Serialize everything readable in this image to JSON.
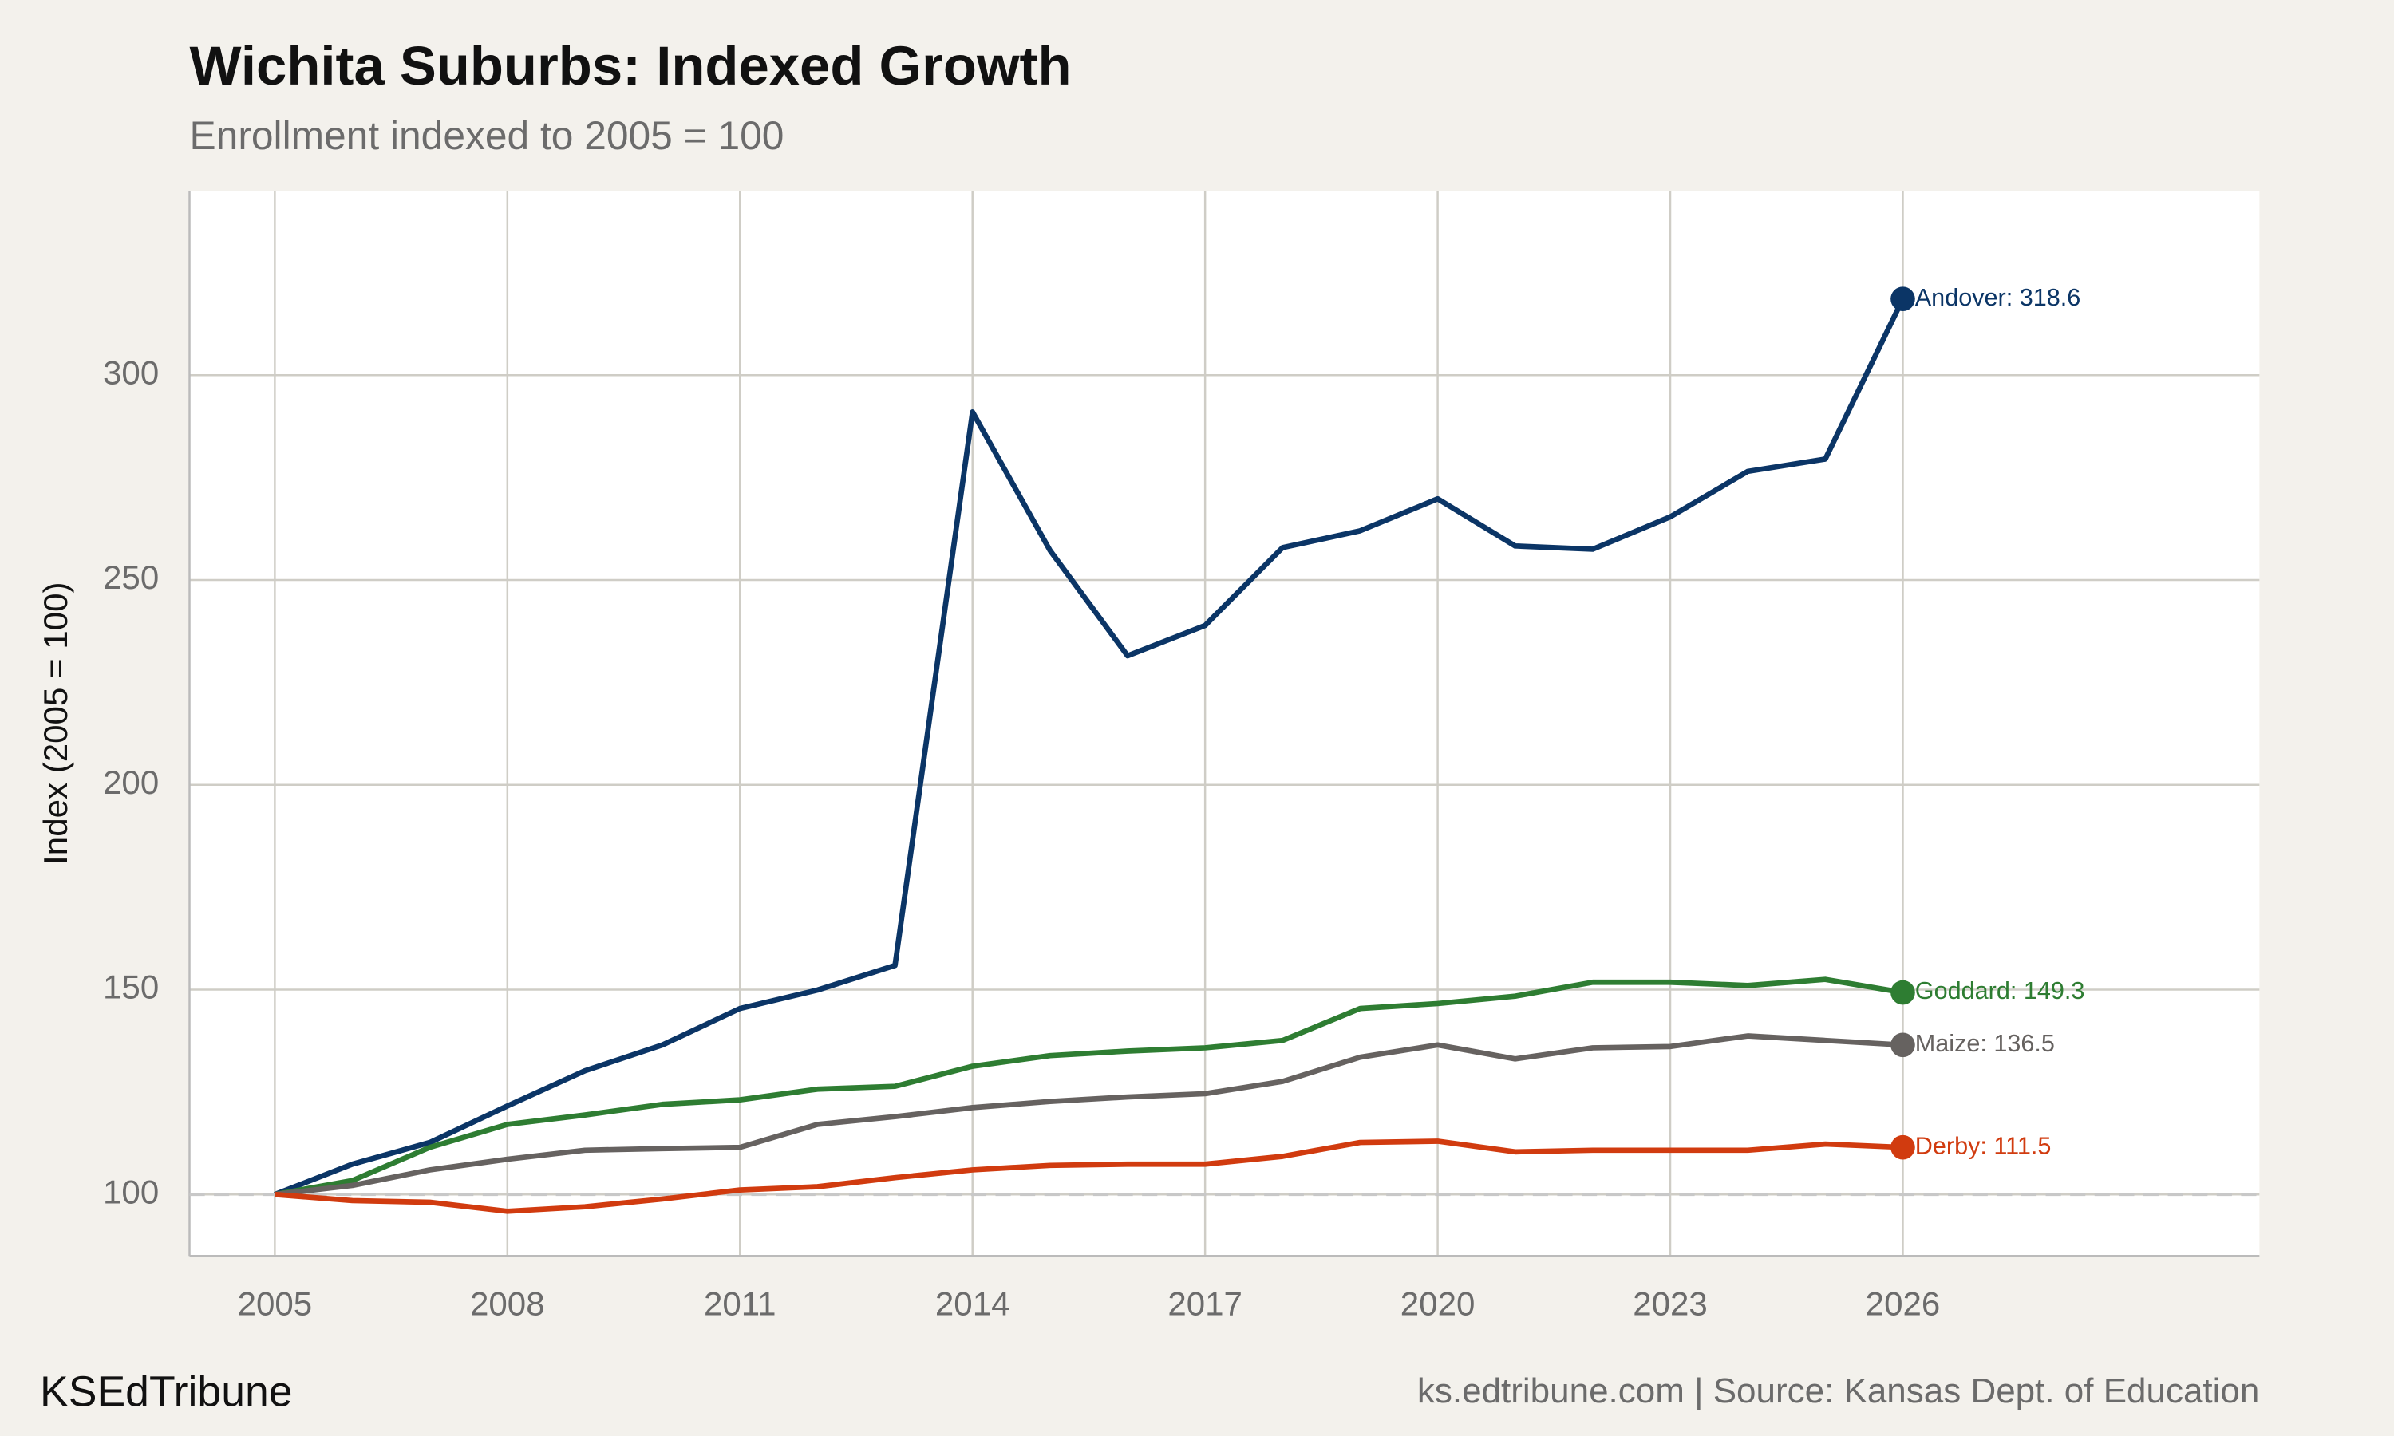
{
  "chart_data": {
    "type": "line",
    "title": "Wichita Suburbs: Indexed Growth",
    "subtitle": "Enrollment indexed to 2005 = 100",
    "y_label": "Index (2005 = 100)",
    "brand": "KSEdTribune",
    "source": "ks.edtribune.com | Source: Kansas Dept. of Education",
    "x": [
      2005,
      2006,
      2007,
      2008,
      2009,
      2010,
      2011,
      2012,
      2013,
      2014,
      2015,
      2016,
      2017,
      2018,
      2019,
      2020,
      2021,
      2022,
      2023,
      2024,
      2025,
      2026
    ],
    "series": [
      {
        "name": "Andover",
        "color": "#0b3566",
        "end_label": "Andover: 318.6",
        "values": [
          100,
          107.4,
          112.7,
          121.6,
          130.2,
          136.5,
          145.4,
          149.9,
          155.9,
          291,
          257.2,
          231.5,
          238.9,
          257.9,
          262,
          269.8,
          258.3,
          257.5,
          265.4,
          276.5,
          279.5,
          318.6
        ]
      },
      {
        "name": "Goddard",
        "color": "#2e7d32",
        "end_label": "Goddard: 149.3",
        "values": [
          100,
          103.4,
          111.5,
          117.1,
          119.4,
          122,
          123.1,
          125.7,
          126.4,
          131.3,
          133.9,
          135,
          135.8,
          137.6,
          145.4,
          146.6,
          148.4,
          151.8,
          151.8,
          151,
          152.5,
          149.3
        ]
      },
      {
        "name": "Maize",
        "color": "#666260",
        "end_label": "Maize: 136.5",
        "values": [
          100,
          102.2,
          106,
          108.6,
          110.8,
          111.2,
          111.5,
          117.1,
          119,
          121.2,
          122.7,
          123.8,
          124.6,
          127.6,
          133.5,
          136.5,
          133.1,
          135.8,
          136.1,
          138.7,
          137.6,
          136.5
        ]
      },
      {
        "name": "Derby",
        "color": "#d13b0f",
        "end_label": "Derby: 111.5",
        "values": [
          100,
          98.5,
          98.1,
          95.9,
          97,
          98.9,
          101.1,
          101.9,
          104.1,
          106,
          107.1,
          107.4,
          107.4,
          109.3,
          112.7,
          113,
          110.4,
          110.8,
          110.8,
          110.8,
          112.3,
          111.5
        ]
      }
    ],
    "reference_line": 100,
    "xlim": [
      2003.9,
      2030.6
    ],
    "xticks": [
      2005,
      2008,
      2011,
      2014,
      2017,
      2020,
      2023,
      2026
    ],
    "ylim": [
      85,
      345
    ],
    "yticks": [
      100,
      150,
      200,
      250,
      300
    ],
    "grid": true
  }
}
